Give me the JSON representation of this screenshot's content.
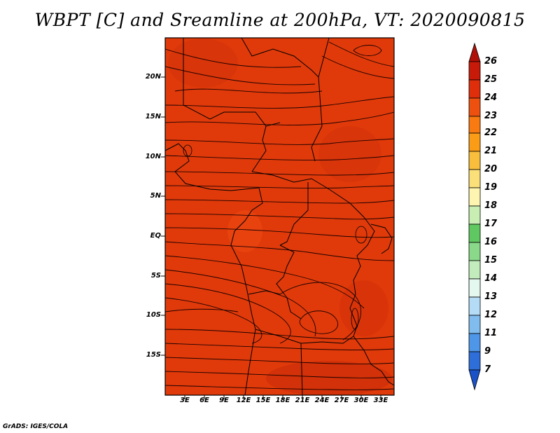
{
  "title": "WBPT [C] and Sreamline at 200hPa, VT: 2020090815",
  "credit": "GrADS: IGES/COLA",
  "map": {
    "extent": {
      "lon": [
        0,
        35
      ],
      "lat": [
        -20,
        25
      ]
    },
    "fill_color": "#e03a0a",
    "lat_labels": [
      "20N",
      "15N",
      "10N",
      "5N",
      "EQ",
      "5S",
      "10S",
      "15S"
    ],
    "lon_labels": [
      "3E",
      "6E",
      "9E",
      "12E",
      "15E",
      "18E",
      "21E",
      "24E",
      "27E",
      "30E",
      "33E"
    ]
  },
  "colorbar": {
    "labels": [
      "26",
      "25",
      "24",
      "23",
      "22",
      "21",
      "20",
      "19",
      "18",
      "17",
      "16",
      "15",
      "14",
      "13",
      "12",
      "11",
      "9",
      "7"
    ],
    "colors": [
      "#b11008",
      "#c81a08",
      "#de2e0c",
      "#ee5010",
      "#f87a10",
      "#fa9c16",
      "#f9bf3c",
      "#fbe07a",
      "#fdf5b0",
      "#c8eeb4",
      "#60c860",
      "#8ad88a",
      "#c2ecbc",
      "#e4f8f0",
      "#b4dcf6",
      "#80bcee",
      "#4e96e8",
      "#2e6ed8",
      "#1a52c8"
    ]
  }
}
